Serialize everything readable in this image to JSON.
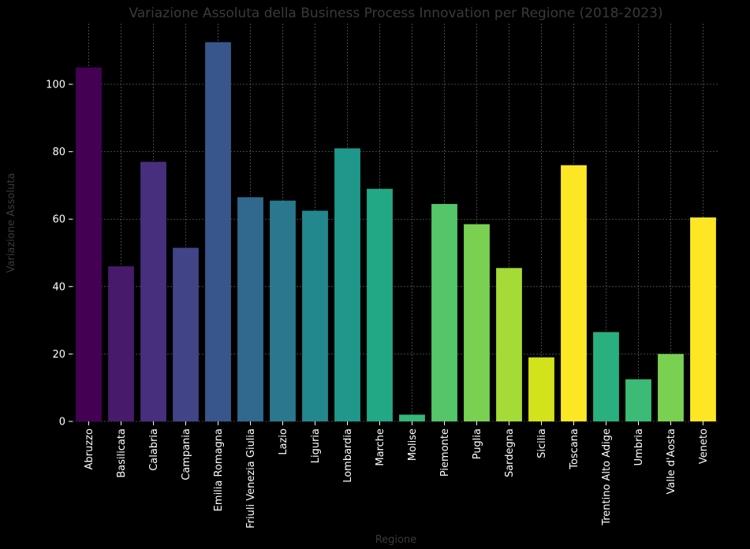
{
  "chart_data": {
    "type": "bar",
    "title": "Variazione Assoluta della Business Process Innovation per Regione (2018-2023)",
    "xlabel": "Regione",
    "ylabel": "Variazione Assoluta",
    "ylim": [
      0,
      118
    ],
    "yticks": [
      0,
      20,
      40,
      60,
      80,
      100
    ],
    "grid": true,
    "categories": [
      "Abruzzo",
      "Basilicata",
      "Calabria",
      "Campania",
      "Emilia Romagna",
      "Friuli Venezia Giulia",
      "Lazio",
      "Liguria",
      "Lombardia",
      "Marche",
      "Molise",
      "Piemonte",
      "Puglia",
      "Sardegna",
      "Sicilia",
      "Toscana",
      "Trentino Alto Adige",
      "Umbria",
      "Valle d'Aosta",
      "Veneto"
    ],
    "values": [
      105,
      46,
      77,
      51.5,
      112.5,
      66.5,
      65.5,
      62.5,
      81,
      69,
      2,
      64.5,
      58.5,
      45.5,
      19,
      76,
      26.5,
      12.5,
      20,
      60.5
    ],
    "colors": [
      "#440154",
      "#481a6c",
      "#472f7d",
      "#414487",
      "#39568c",
      "#31688e",
      "#2a788e",
      "#23888e",
      "#1f988b",
      "#22a884",
      "#35b779",
      "#54c568",
      "#7ad151",
      "#a5db36",
      "#d2e21b",
      "#fde725",
      "#2ab07f",
      "#3bbb75",
      "#7ad151",
      "#fde725"
    ]
  }
}
